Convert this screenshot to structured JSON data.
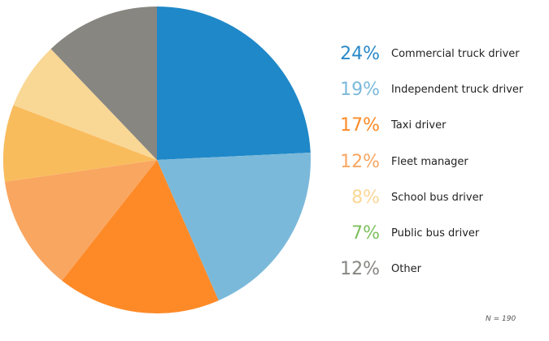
{
  "chart_data": {
    "type": "pie",
    "start": "top",
    "direction": "clockwise",
    "slices": [
      {
        "label": "Commercial truck driver",
        "value": 24,
        "pct_label": "24%",
        "slice_color": "#1f88c8",
        "label_color": "#2a88c8"
      },
      {
        "label": "Independent truck driver",
        "value": 19,
        "pct_label": "19%",
        "slice_color": "#7bb9da",
        "label_color": "#7bb9da"
      },
      {
        "label": "Taxi driver",
        "value": 17,
        "pct_label": "17%",
        "slice_color": "#fd8a27",
        "label_color": "#fd8a27"
      },
      {
        "label": "Fleet manager",
        "value": 12,
        "pct_label": "12%",
        "slice_color": "#f9a661",
        "label_color": "#f9a661"
      },
      {
        "label": "School bus driver",
        "value": 8,
        "pct_label": "8%",
        "slice_color": "#f9bc5d",
        "label_color": "#fbd795"
      },
      {
        "label": "Public bus driver",
        "value": 7,
        "pct_label": "7%",
        "slice_color": "#f9d795",
        "label_color": "#7dbf5e"
      },
      {
        "label": "Other",
        "value": 12,
        "pct_label": "12%",
        "slice_color": "#878681",
        "label_color": "#878681"
      }
    ],
    "note": "N = 190"
  }
}
